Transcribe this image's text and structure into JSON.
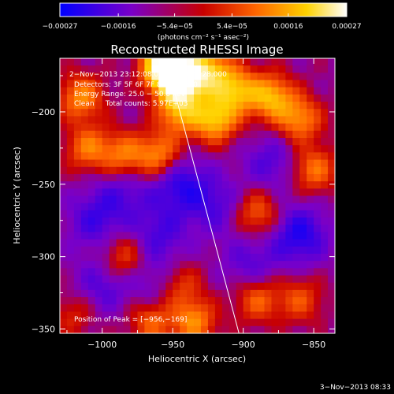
{
  "chart_data": {
    "type": "heatmap",
    "title": "Reconstructed RHESSI Image",
    "xlabel": "Heliocentric X (arcsec)",
    "ylabel": "Heliocentric Y (arcsec)",
    "xlim": [
      -1030,
      -835
    ],
    "ylim": [
      -353,
      -163
    ],
    "x_ticks": [
      -1000,
      -950,
      -900,
      -850
    ],
    "y_ticks": [
      -200,
      -250,
      -300,
      -350
    ],
    "x_tick_labels": [
      "−1000",
      "−950",
      "−900",
      "−850"
    ],
    "y_tick_labels": [
      "−200",
      "−250",
      "−300",
      "−350"
    ],
    "colorbar": {
      "range": [
        -0.00027,
        0.00027
      ],
      "ticks": [
        -0.00027,
        -0.00016,
        -5.4e-05,
        5.4e-05,
        0.00016,
        0.00027
      ],
      "tick_labels": [
        "−0.00027",
        "−0.00016",
        "−5.4e−05",
        "5.4e−05",
        "0.00016",
        "0.00027"
      ],
      "units": "(photons cm⁻² s⁻¹ asec⁻²)",
      "colors": [
        "#0000ff",
        "#7a00c8",
        "#c80000",
        "#ff6400",
        "#ffd200",
        "#ffffff"
      ]
    },
    "annotations": [
      "2−Nov−2013 23:12:08.000 to 23:16:28.000",
      "Detectors: 3F 5F 6F 7F 8F 9F, Att 0",
      "Energy Range: 25.0 − 50.0 keV",
      "Clean     Total counts: 5.97E+03"
    ],
    "peak_label": "Position of Peak = [−956,−169]",
    "peak": [
      -956,
      -169
    ],
    "limb_line": [
      [
        -955,
        -163
      ],
      [
        -903,
        -353
      ]
    ],
    "bright_regions": [
      {
        "x": -955,
        "y": -168,
        "level": 1.0
      },
      {
        "x": -945,
        "y": -178,
        "level": 0.85
      },
      {
        "x": -925,
        "y": -172,
        "level": 0.6
      },
      {
        "x": -905,
        "y": -185,
        "level": 0.55
      },
      {
        "x": -920,
        "y": -205,
        "level": 0.6
      },
      {
        "x": -880,
        "y": -190,
        "level": 0.55
      },
      {
        "x": -860,
        "y": -205,
        "level": 0.45
      },
      {
        "x": -1015,
        "y": -190,
        "level": 0.45
      },
      {
        "x": -1010,
        "y": -225,
        "level": 0.4
      },
      {
        "x": -985,
        "y": -230,
        "level": 0.4
      },
      {
        "x": -960,
        "y": -230,
        "level": 0.45
      },
      {
        "x": -945,
        "y": -200,
        "level": 0.5
      },
      {
        "x": -850,
        "y": -240,
        "level": 0.4
      },
      {
        "x": -890,
        "y": -270,
        "level": 0.35
      },
      {
        "x": -985,
        "y": -300,
        "level": 0.3
      },
      {
        "x": -945,
        "y": -320,
        "level": 0.3
      },
      {
        "x": -935,
        "y": -345,
        "level": 0.45
      },
      {
        "x": -965,
        "y": -345,
        "level": 0.35
      },
      {
        "x": -890,
        "y": -330,
        "level": 0.35
      },
      {
        "x": -860,
        "y": -330,
        "level": 0.3
      },
      {
        "x": -1020,
        "y": -340,
        "level": 0.2
      }
    ],
    "dim_regions": [
      {
        "x": -945,
        "y": -250,
        "level": 0.9
      },
      {
        "x": -860,
        "y": -285,
        "level": 1.0
      },
      {
        "x": -1005,
        "y": -275,
        "level": 0.7
      },
      {
        "x": -960,
        "y": -285,
        "level": 0.65
      },
      {
        "x": -1000,
        "y": -320,
        "level": 0.6
      },
      {
        "x": -880,
        "y": -235,
        "level": 0.6
      },
      {
        "x": -920,
        "y": -265,
        "level": 0.6
      },
      {
        "x": -985,
        "y": -255,
        "level": 0.55
      },
      {
        "x": -960,
        "y": -320,
        "level": 0.5
      },
      {
        "x": -895,
        "y": -305,
        "level": 0.55
      }
    ]
  },
  "footer": {
    "timestamp": "3−Nov−2013 08:33"
  }
}
